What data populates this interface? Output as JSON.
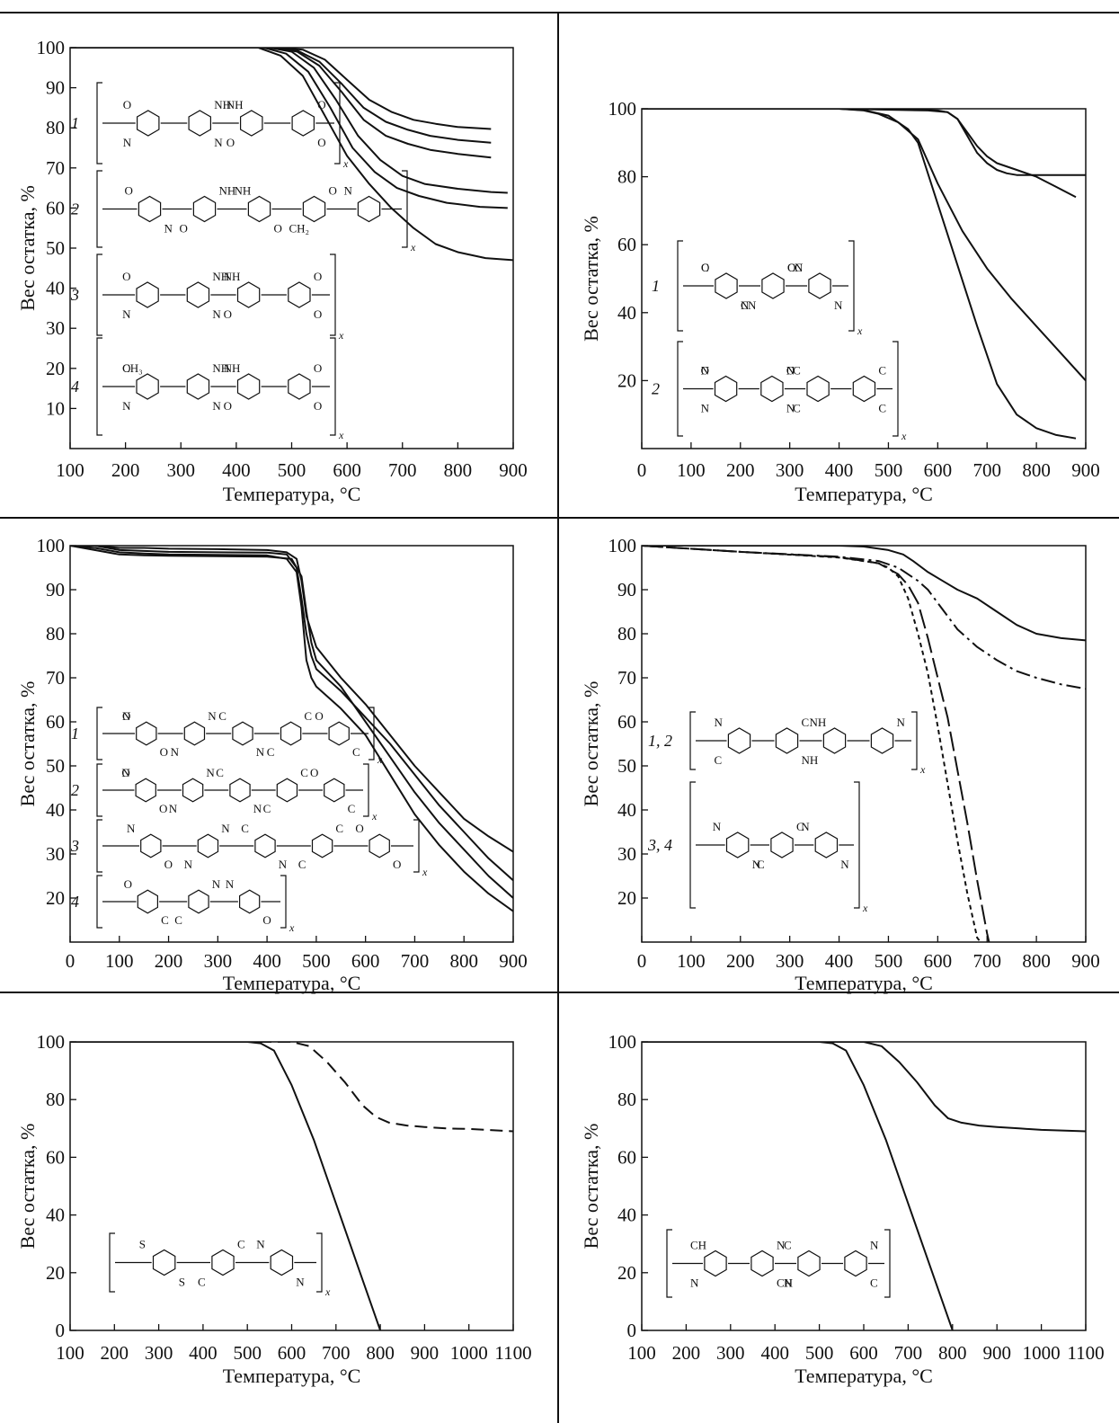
{
  "chart_data": [
    {
      "type": "line",
      "xlabel": "Температура, °C",
      "ylabel": "Вес остатка, %",
      "xlim": [
        100,
        900
      ],
      "ylim": [
        0,
        100
      ],
      "xticks": [
        "100",
        "200",
        "300",
        "400",
        "500",
        "600",
        "700",
        "800",
        "900"
      ],
      "yticks": [
        "10",
        "20",
        "30",
        "40",
        "50",
        "60",
        "70",
        "80",
        "90",
        "100"
      ],
      "legend": [
        {
          "label": "1",
          "text": [
            "O",
            "NH",
            "NH",
            "O",
            "N",
            "N",
            "O",
            "O"
          ],
          "sub": "x"
        },
        {
          "label": "2",
          "text": [
            "O",
            "NH",
            "NH",
            "O",
            "N",
            "N",
            "O",
            "O",
            "CH₂"
          ],
          "sub": "x"
        },
        {
          "label": "3",
          "text": [
            "O",
            "NH",
            "NH",
            "O",
            "N",
            "N",
            "O",
            "O"
          ],
          "sub": "x"
        },
        {
          "label": "4",
          "text": [
            "O",
            "NH",
            "NH",
            "O",
            "N",
            "N",
            "O",
            "O",
            "CH₃"
          ],
          "sub": "x"
        }
      ],
      "series": [
        {
          "style": "solid",
          "x": [
            100,
            480,
            520,
            560,
            600,
            640,
            680,
            720,
            760,
            800,
            860
          ],
          "y": [
            100,
            100,
            99.5,
            97,
            92,
            87,
            84,
            82,
            81,
            80.2,
            79.7
          ]
        },
        {
          "style": "solid",
          "x": [
            100,
            470,
            510,
            550,
            590,
            630,
            670,
            710,
            750,
            800,
            860
          ],
          "y": [
            100,
            100,
            99.3,
            96.5,
            91,
            85,
            81.5,
            79.5,
            78,
            77,
            76.3
          ]
        },
        {
          "style": "solid",
          "x": [
            100,
            470,
            510,
            550,
            590,
            630,
            670,
            710,
            750,
            800,
            860
          ],
          "y": [
            100,
            100,
            99,
            95.5,
            89,
            82,
            78,
            76,
            74.5,
            73.5,
            72.6
          ]
        },
        {
          "style": "solid",
          "x": [
            100,
            460,
            500,
            540,
            580,
            620,
            660,
            700,
            740,
            800,
            860,
            890
          ],
          "y": [
            100,
            100,
            99,
            95,
            87,
            78,
            72,
            68,
            66,
            64.8,
            64,
            63.8
          ]
        },
        {
          "style": "solid",
          "x": [
            100,
            450,
            490,
            530,
            570,
            610,
            650,
            690,
            730,
            780,
            840,
            890
          ],
          "y": [
            100,
            100,
            98.5,
            94,
            85,
            75,
            69,
            65,
            63,
            61.3,
            60.3,
            60
          ]
        },
        {
          "style": "solid",
          "x": [
            100,
            440,
            480,
            520,
            560,
            600,
            640,
            680,
            720,
            760,
            800,
            850,
            900
          ],
          "y": [
            100,
            100,
            98,
            93,
            83,
            73,
            66,
            60,
            55,
            51,
            49,
            47.5,
            47
          ]
        }
      ]
    },
    {
      "type": "line",
      "xlabel": "Температура, °C",
      "ylabel": "Вес остатка, %",
      "xlim": [
        0,
        900
      ],
      "ylim": [
        0,
        100
      ],
      "xticks": [
        "0",
        "100",
        "200",
        "300",
        "400",
        "500",
        "600",
        "700",
        "800",
        "900"
      ],
      "yticks": [
        "20",
        "40",
        "60",
        "80",
        "100"
      ],
      "legend": [
        {
          "label": "1",
          "text": [
            "O",
            "O",
            "C",
            "C",
            "N",
            "N",
            "C",
            "C",
            "N",
            "N"
          ],
          "sub": "x"
        },
        {
          "label": "2",
          "text": [
            "O",
            "O",
            "C",
            "C",
            "N",
            "N",
            "C",
            "C",
            "N",
            "N"
          ],
          "sub": "x"
        }
      ],
      "series": [
        {
          "style": "solid",
          "x": [
            0,
            400,
            560,
            600,
            620,
            640,
            660,
            680,
            700,
            720,
            740,
            760,
            900
          ],
          "y": [
            100,
            100,
            99.8,
            99.5,
            99,
            97,
            92,
            87,
            84,
            82,
            81,
            80.5,
            80.5
          ]
        },
        {
          "style": "solid",
          "x": [
            0,
            400,
            580,
            620,
            640,
            660,
            680,
            700,
            720,
            760,
            800,
            840,
            880
          ],
          "y": [
            100,
            100,
            99.5,
            99,
            97,
            93,
            89,
            86,
            84,
            82,
            80,
            77,
            74
          ]
        },
        {
          "style": "solid",
          "x": [
            0,
            400,
            450,
            480,
            520,
            560,
            600,
            650,
            700,
            750,
            800,
            850,
            900
          ],
          "y": [
            100,
            100,
            99.5,
            98.5,
            96,
            91,
            78,
            64,
            53,
            44,
            36,
            28,
            20
          ]
        },
        {
          "style": "solid",
          "x": [
            0,
            400,
            450,
            500,
            540,
            560,
            600,
            640,
            680,
            720,
            760,
            800,
            840,
            880
          ],
          "y": [
            100,
            100,
            99.6,
            98,
            94,
            90,
            72,
            54,
            36,
            19,
            10,
            6,
            4,
            3
          ]
        }
      ]
    },
    {
      "type": "line",
      "xlabel": "Температура, °C",
      "ylabel": "Вес остатка, %",
      "xlim": [
        0,
        900
      ],
      "ylim": [
        10,
        100
      ],
      "xticks": [
        "0",
        "100",
        "200",
        "300",
        "400",
        "500",
        "600",
        "700",
        "800",
        "900"
      ],
      "yticks": [
        "20",
        "30",
        "40",
        "50",
        "60",
        "70",
        "80",
        "90",
        "100"
      ],
      "legend": [
        {
          "label": "1",
          "text": [
            "N",
            "N",
            "C",
            "C",
            "O",
            "O",
            "N",
            "N",
            "C",
            "C",
            "O"
          ],
          "sub": "x"
        },
        {
          "label": "2",
          "text": [
            "N",
            "N",
            "C",
            "C",
            "O",
            "O",
            "N",
            "N",
            "C",
            "C",
            "O"
          ],
          "sub": "x"
        },
        {
          "label": "3",
          "text": [
            "N",
            "N",
            "C",
            "C",
            "O",
            "O",
            "N",
            "N",
            "C",
            "O"
          ],
          "sub": "x"
        },
        {
          "label": "4",
          "text": [
            "O",
            "N",
            "N",
            "C",
            "C",
            "O"
          ],
          "sub": "x"
        }
      ],
      "series": [
        {
          "style": "solid",
          "x": [
            0,
            50,
            100,
            150,
            200,
            300,
            400,
            440,
            460,
            470,
            480,
            500,
            550,
            600,
            650,
            700,
            750,
            800,
            850,
            900
          ],
          "y": [
            100,
            100,
            99.5,
            99.5,
            99.3,
            99.2,
            99,
            98.5,
            97,
            92,
            84,
            77,
            70,
            64,
            57,
            50,
            44,
            38,
            34,
            30.5
          ]
        },
        {
          "style": "solid",
          "x": [
            0,
            50,
            100,
            150,
            200,
            300,
            400,
            440,
            460,
            470,
            480,
            490,
            500,
            550,
            600,
            650,
            700,
            750,
            800,
            850,
            900
          ],
          "y": [
            100,
            100,
            99,
            98.8,
            98.6,
            98.5,
            98.4,
            98,
            95,
            88,
            80,
            75,
            72,
            67,
            61,
            55,
            48,
            41,
            35,
            29,
            24
          ]
        },
        {
          "style": "solid",
          "x": [
            0,
            50,
            100,
            150,
            200,
            300,
            400,
            450,
            470,
            480,
            490,
            500,
            550,
            600,
            650,
            700,
            750,
            800,
            850,
            900
          ],
          "y": [
            100,
            99,
            98,
            97.8,
            97.7,
            97.6,
            97.5,
            97,
            93,
            85,
            78,
            74,
            68,
            60,
            52,
            44,
            37,
            31,
            25,
            20
          ]
        },
        {
          "style": "solid",
          "x": [
            0,
            50,
            100,
            150,
            200,
            300,
            400,
            440,
            460,
            470,
            480,
            490,
            500,
            550,
            600,
            650,
            700,
            750,
            800,
            850,
            900
          ],
          "y": [
            100,
            99.5,
            98.5,
            98.2,
            98,
            97.9,
            97.8,
            97,
            94,
            86,
            74,
            70,
            68,
            63,
            57,
            48,
            39,
            32,
            26,
            21,
            17
          ]
        }
      ]
    },
    {
      "type": "line",
      "xlabel": "Температура, °C",
      "ylabel": "Вес остатка, %",
      "xlim": [
        0,
        900
      ],
      "ylim": [
        10,
        100
      ],
      "xticks": [
        "0",
        "100",
        "200",
        "300",
        "400",
        "500",
        "600",
        "700",
        "800",
        "900"
      ],
      "yticks": [
        "20",
        "30",
        "40",
        "50",
        "60",
        "70",
        "80",
        "90",
        "100"
      ],
      "ytick_note": "bottom tick reads 20",
      "legend": [
        {
          "label": "1, 2",
          "text": [
            "N",
            "C",
            "NH",
            "N",
            "C",
            "NH"
          ],
          "sub": "x"
        },
        {
          "label": "3, 4",
          "text": [
            "N",
            "C",
            "N",
            "N",
            "C",
            "N"
          ],
          "sub": "x"
        }
      ],
      "series": [
        {
          "style": "solid",
          "x": [
            0,
            400,
            450,
            500,
            530,
            550,
            580,
            610,
            640,
            680,
            720,
            760,
            800,
            850,
            900
          ],
          "y": [
            100,
            100,
            99.8,
            99,
            98,
            96.5,
            94,
            92,
            90,
            88,
            85,
            82,
            80,
            79,
            78.5
          ]
        },
        {
          "style": "dashdot",
          "x": [
            0,
            200,
            400,
            480,
            520,
            560,
            580,
            600,
            640,
            680,
            720,
            760,
            800,
            850,
            900
          ],
          "y": [
            100,
            98.6,
            97.5,
            96.5,
            95,
            92,
            90,
            87,
            81,
            77,
            74,
            71.5,
            70,
            68.5,
            67.5
          ]
        },
        {
          "style": "longdash",
          "x": [
            0,
            200,
            400,
            480,
            520,
            540,
            560,
            580,
            600,
            620,
            640,
            660,
            680,
            700,
            710
          ],
          "y": [
            100,
            98.6,
            97.4,
            96,
            93.5,
            91,
            87,
            79,
            70,
            61,
            49,
            37,
            24,
            12,
            7
          ]
        },
        {
          "style": "shortdash",
          "x": [
            0,
            200,
            400,
            480,
            500,
            520,
            540,
            560,
            580,
            600,
            620,
            640,
            660,
            680,
            700
          ],
          "y": [
            100,
            98.6,
            97.3,
            96,
            95,
            93,
            88,
            80,
            71,
            59,
            46,
            33,
            21,
            11,
            8
          ]
        }
      ]
    },
    {
      "type": "line",
      "xlabel": "Температура, °C",
      "ylabel": "Вес остатка, %",
      "xlim": [
        100,
        1100
      ],
      "ylim": [
        0,
        100
      ],
      "xticks": [
        "100",
        "200",
        "300",
        "400",
        "500",
        "600",
        "700",
        "800",
        "900",
        "1000",
        "1100"
      ],
      "yticks": [
        "0",
        "20",
        "40",
        "60",
        "80",
        "100"
      ],
      "legend": [
        {
          "label": "",
          "text": [
            "S",
            "C",
            "N",
            "S",
            "C",
            "N"
          ],
          "sub": "x"
        }
      ],
      "series": [
        {
          "style": "solid",
          "x": [
            100,
            500,
            530,
            560,
            600,
            650,
            700,
            750,
            800
          ],
          "y": [
            100,
            100,
            99.5,
            97,
            85,
            66,
            44,
            22,
            0
          ]
        },
        {
          "style": "dashed",
          "x": [
            100,
            600,
            640,
            680,
            720,
            760,
            790,
            820,
            860,
            900,
            950,
            1000,
            1100
          ],
          "y": [
            100,
            100,
            98.5,
            93,
            86,
            78,
            74,
            72,
            71,
            70.5,
            70,
            69.8,
            69
          ]
        }
      ]
    },
    {
      "type": "line",
      "xlabel": "Температура, °C",
      "ylabel": "Вес остатка, %",
      "xlim": [
        100,
        1100
      ],
      "ylim": [
        0,
        100
      ],
      "xticks": [
        "100",
        "200",
        "300",
        "400",
        "500",
        "600",
        "700",
        "800",
        "900",
        "1000",
        "1100"
      ],
      "yticks": [
        "0",
        "20",
        "40",
        "60",
        "80",
        "100"
      ],
      "legend": [
        {
          "label": "",
          "text": [
            "CH",
            "N",
            "C",
            "N",
            "N",
            "CH",
            "N",
            "C"
          ],
          "sub": ""
        }
      ],
      "series": [
        {
          "style": "solid",
          "x": [
            100,
            500,
            530,
            560,
            600,
            650,
            700,
            750,
            800
          ],
          "y": [
            100,
            100,
            99.5,
            97,
            85,
            66,
            44,
            22,
            0
          ]
        },
        {
          "style": "solid",
          "x": [
            100,
            600,
            640,
            680,
            720,
            760,
            790,
            820,
            860,
            900,
            950,
            1000,
            1100
          ],
          "y": [
            100,
            100,
            98.5,
            93,
            86,
            78,
            73.5,
            72,
            71,
            70.5,
            70,
            69.5,
            69
          ]
        }
      ]
    }
  ]
}
